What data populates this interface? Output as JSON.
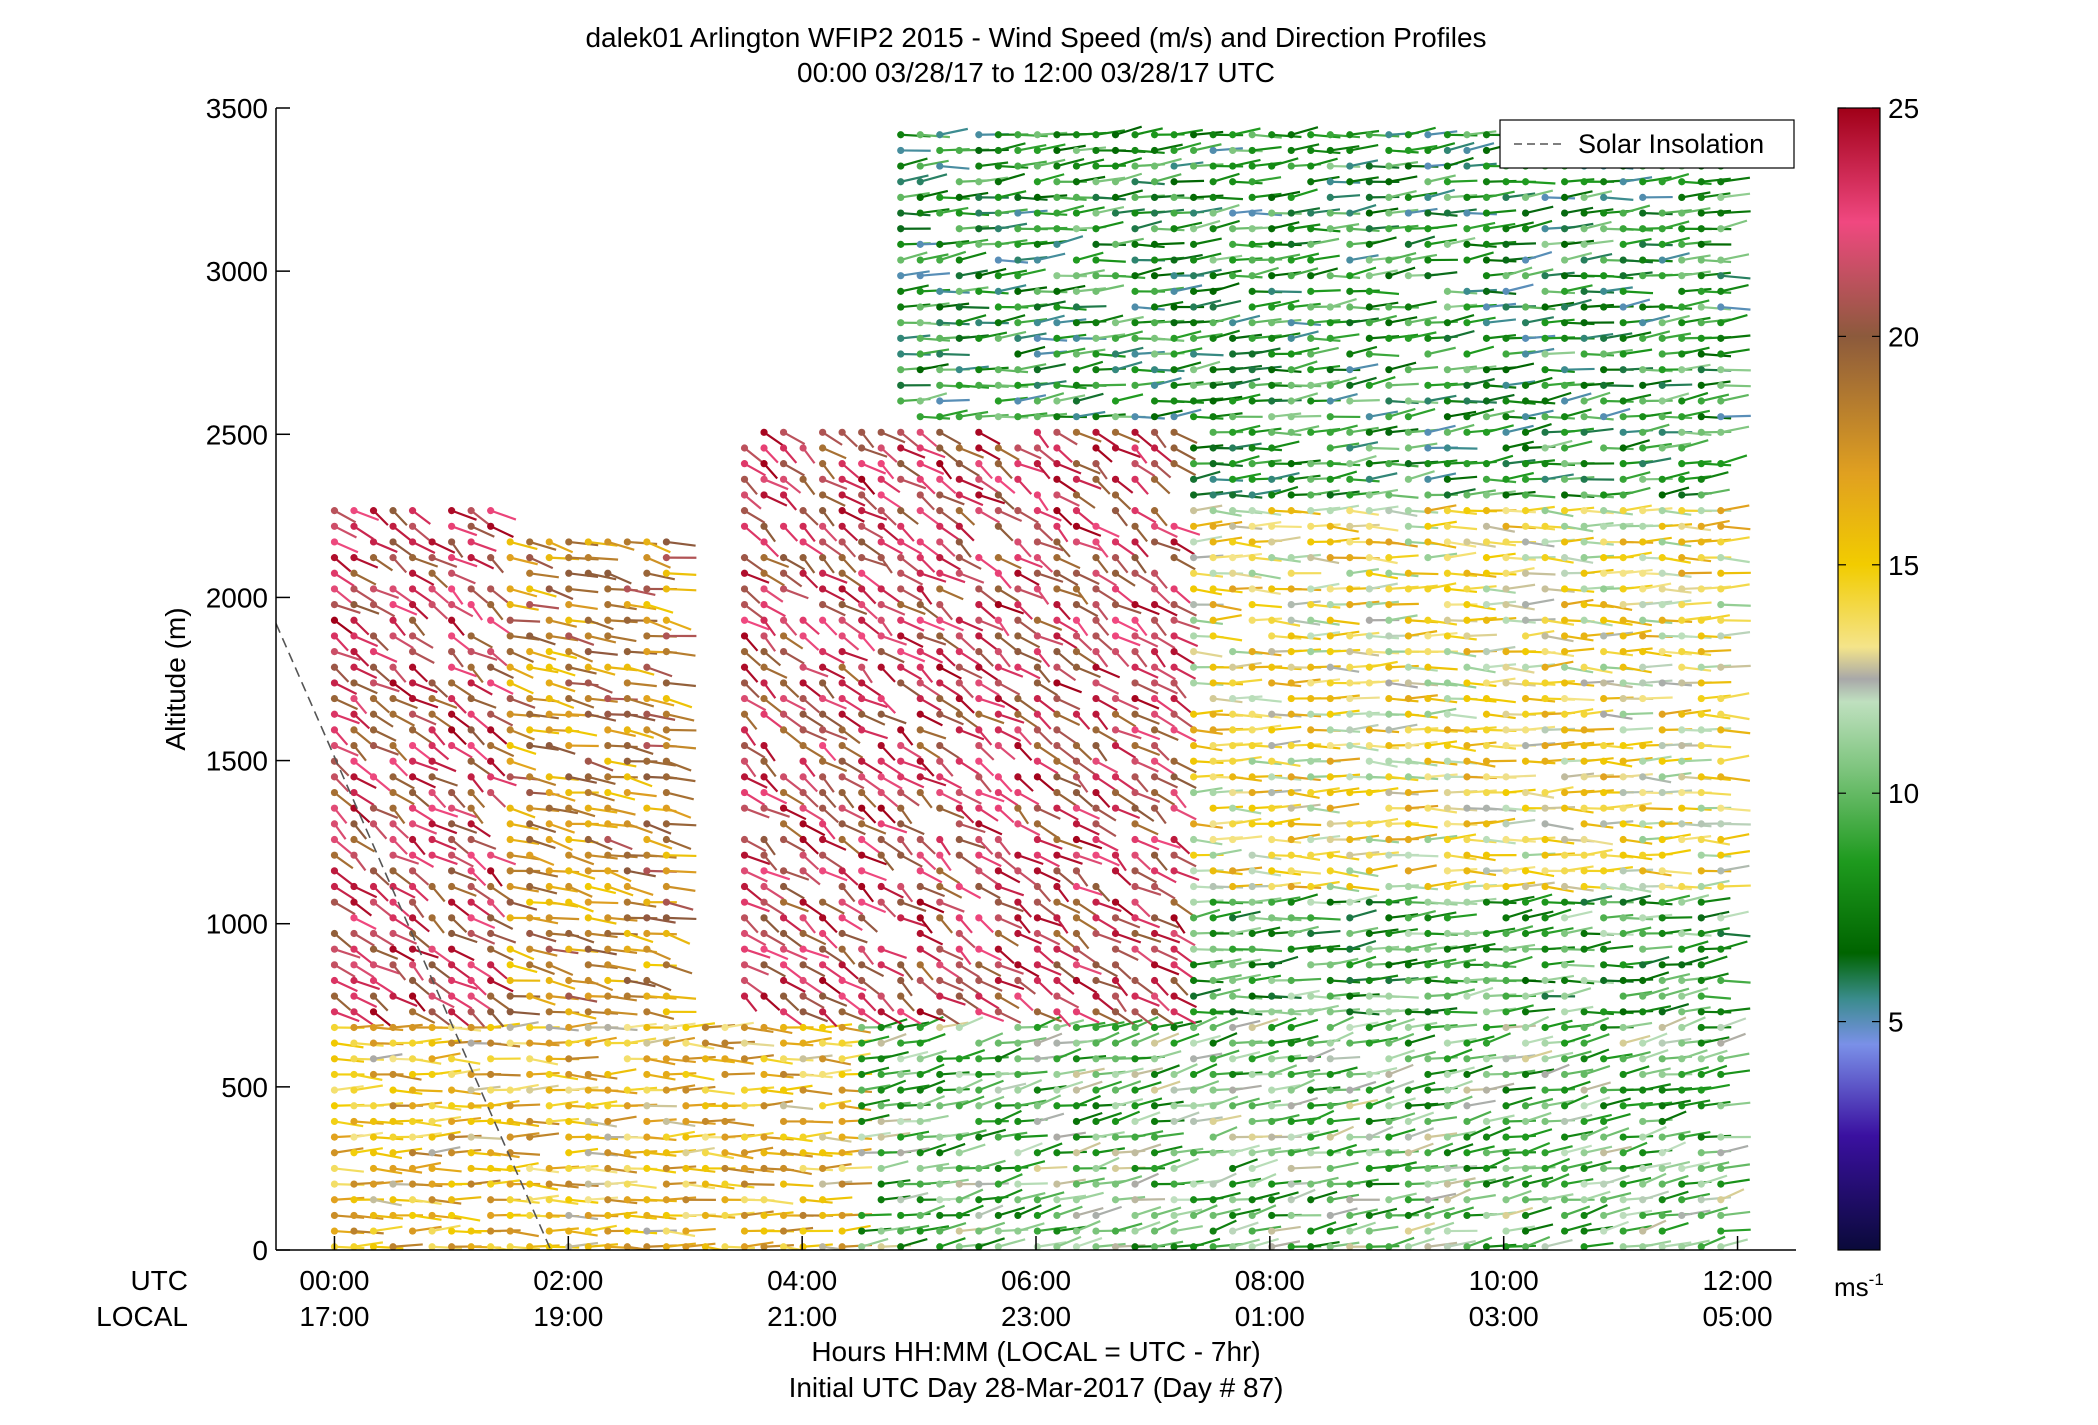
{
  "chart_data": {
    "type": "wind barb profile (scatter)",
    "title": "dalek01 Arlington WFIP2 2015 - Wind Speed (m/s) and Direction Profiles",
    "subtitle": "00:00 03/28/17 to 12:00 03/28/17  UTC",
    "ylabel": "Altitude (m)",
    "xlabel": "Hours HH:MM  (LOCAL = UTC - 7hr)",
    "xlabel2": "Initial UTC Day 28-Mar-2017 (Day # 87)",
    "xlim_hours_utc": [
      -0.5,
      12.5
    ],
    "ylim": [
      0,
      3500
    ],
    "yticks": [
      0,
      500,
      1000,
      1500,
      2000,
      2500,
      3000,
      3500
    ],
    "ytick_labels": [
      "0",
      "500",
      "1000",
      "1500",
      "2000",
      "2500",
      "3000",
      "3500"
    ],
    "xticks_hours": [
      0,
      2,
      4,
      6,
      8,
      10,
      12
    ],
    "row_label_utc": "UTC",
    "row_label_local": "LOCAL",
    "xtick_labels_utc": [
      "00:00",
      "02:00",
      "04:00",
      "06:00",
      "08:00",
      "10:00",
      "12:00"
    ],
    "xtick_labels_local": [
      "17:00",
      "19:00",
      "21:00",
      "23:00",
      "01:00",
      "03:00",
      "05:00"
    ],
    "legend": {
      "label": "Solar Insolation",
      "position": "top-right",
      "style": "dashed gray line"
    },
    "solar_insolation_line": {
      "x_hours": [
        -0.5,
        1.85
      ],
      "y_m": [
        1920,
        0
      ]
    },
    "colorbar": {
      "range": [
        0,
        25
      ],
      "ticks": [
        5,
        10,
        15,
        20,
        25
      ],
      "tick_labels": [
        "5",
        "10",
        "15",
        "20",
        "25"
      ],
      "unit_label": "ms",
      "unit_exponent": "-1",
      "stops": [
        {
          "v": 0,
          "c": "#0a0a3a"
        },
        {
          "v": 2.5,
          "c": "#3a10a0"
        },
        {
          "v": 4.5,
          "c": "#7a90e8"
        },
        {
          "v": 5.5,
          "c": "#3a8c8c"
        },
        {
          "v": 6.5,
          "c": "#006400"
        },
        {
          "v": 8.5,
          "c": "#1e9a1e"
        },
        {
          "v": 10.5,
          "c": "#7cc47c"
        },
        {
          "v": 12.0,
          "c": "#bfe0bf"
        },
        {
          "v": 12.5,
          "c": "#a8a8a8"
        },
        {
          "v": 13.2,
          "c": "#f4e48a"
        },
        {
          "v": 15.0,
          "c": "#f2cc00"
        },
        {
          "v": 17.0,
          "c": "#e0a020"
        },
        {
          "v": 20.0,
          "c": "#8c5a3c"
        },
        {
          "v": 22.5,
          "c": "#f04880"
        },
        {
          "v": 25.0,
          "c": "#a00018"
        }
      ]
    },
    "profiles": {
      "time_step_hours": 0.167,
      "time_start_hours": 0.0,
      "time_end_hours": 12.0,
      "height_step_m": 48,
      "regimes": [
        {
          "name": "surface_layer_evening",
          "t": [
            0,
            4.5
          ],
          "h": [
            0,
            700
          ],
          "speed_ms": 15.5,
          "dir_deg": 270
        },
        {
          "name": "surface_layer_night",
          "t": [
            4.5,
            12
          ],
          "h": [
            0,
            700
          ],
          "speed_ms": 10,
          "dir_deg": 250
        },
        {
          "name": "upper_strong_early",
          "t": [
            0,
            1.5
          ],
          "h": [
            700,
            2300
          ],
          "speed_ms": 22,
          "dir_deg": 320
        },
        {
          "name": "upper_moderate",
          "t": [
            1.5,
            3.0
          ],
          "h": [
            700,
            2200
          ],
          "speed_ms": 18,
          "dir_deg": 290
        },
        {
          "name": "upper_strong_mid",
          "t": [
            3.5,
            7.2
          ],
          "h": [
            700,
            2550
          ],
          "speed_ms": 22,
          "dir_deg": 320
        },
        {
          "name": "transition_mid",
          "t": [
            7.2,
            12
          ],
          "h": [
            1100,
            2300
          ],
          "speed_ms": 14,
          "dir_deg": 270
        },
        {
          "name": "lower_jet_late",
          "t": [
            7.2,
            12
          ],
          "h": [
            700,
            1100
          ],
          "speed_ms": 9,
          "dir_deg": 260
        },
        {
          "name": "upper_green_high",
          "t": [
            4.8,
            12
          ],
          "h": [
            2300,
            3420
          ],
          "speed_ms": 8,
          "dir_deg": 260
        }
      ]
    }
  }
}
